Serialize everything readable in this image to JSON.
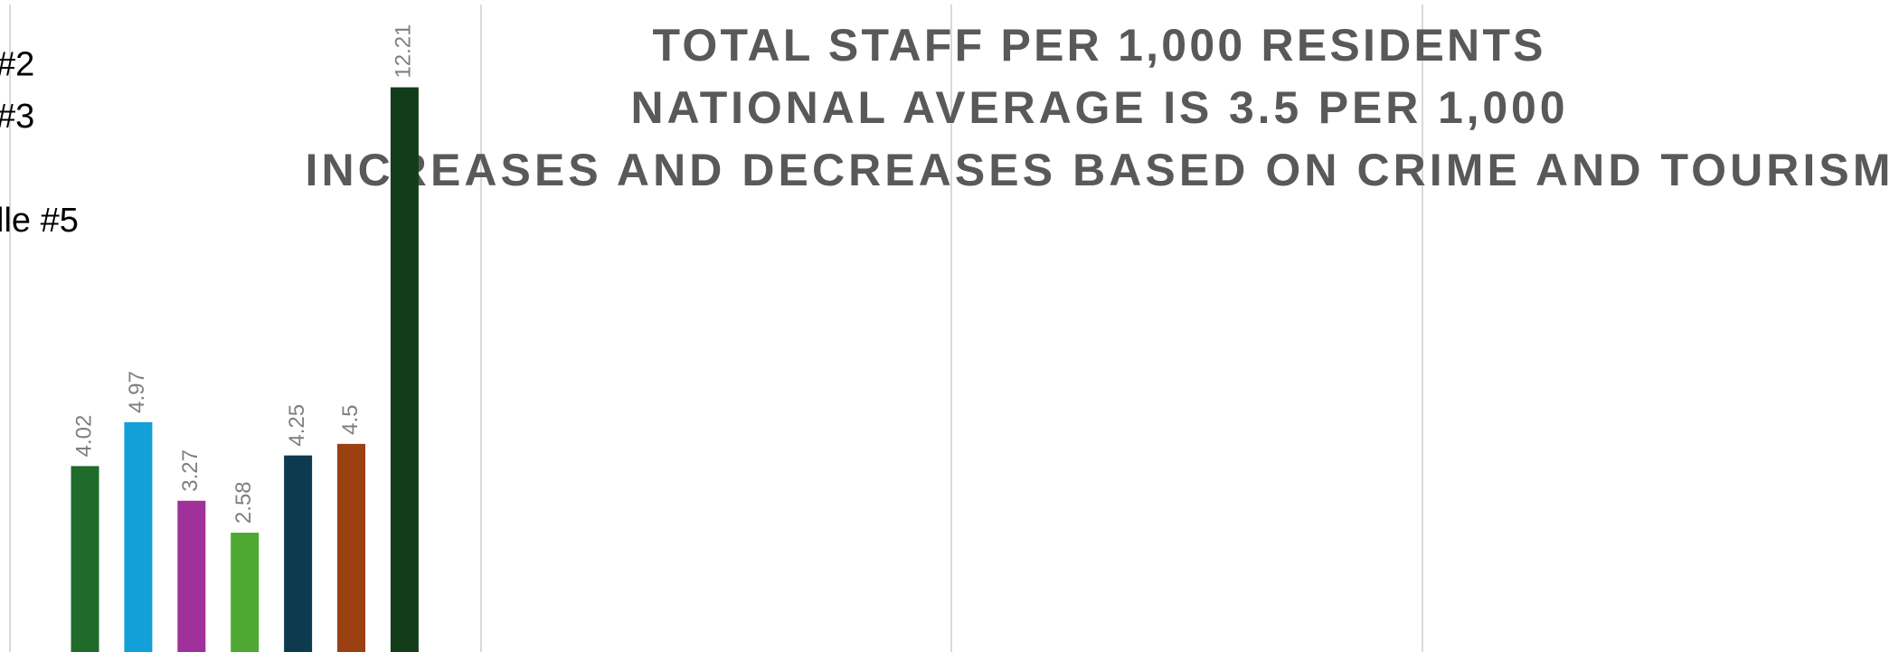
{
  "chart_data": {
    "type": "bar",
    "title": [
      "TOTAL STAFF PER 1,000 RESIDENTS",
      "NATIONAL AVERAGE IS 3.5 PER 1,000",
      "INCREASES AND DECREASES BASED ON CRIME AND TOURISM"
    ],
    "series": [
      {
        "name": null,
        "color": "#1e6b2a",
        "values": [
          4.02
        ]
      },
      {
        "name": "#2",
        "color": "#139fd8",
        "values": [
          4.97
        ]
      },
      {
        "name": "#3",
        "color": "#a0309a",
        "values": [
          3.27
        ]
      },
      {
        "name": null,
        "color": "#4ea832",
        "values": [
          2.58
        ]
      },
      {
        "name": "lle #5",
        "color": "#0e3a50",
        "values": [
          4.25
        ]
      },
      {
        "name": null,
        "color": "#9a4012",
        "values": [
          4.5
        ]
      },
      {
        "name": null,
        "color": "#133d1a",
        "values": [
          12.21
        ]
      }
    ],
    "ylim": [
      0,
      14
    ]
  }
}
